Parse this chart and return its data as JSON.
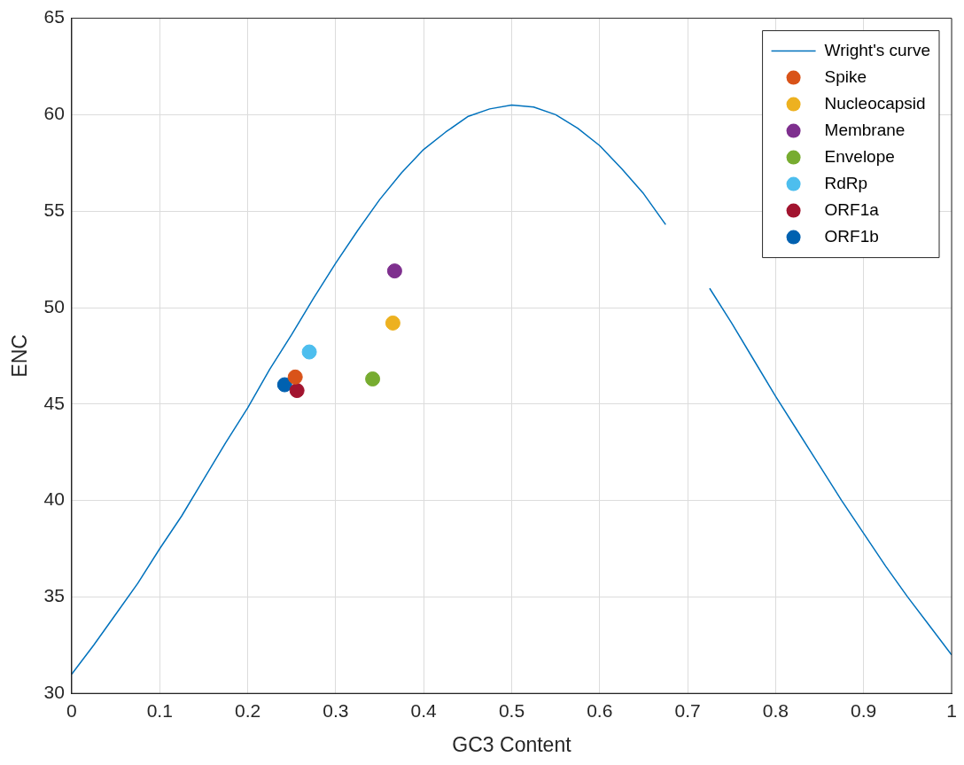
{
  "chart_data": {
    "type": "scatter",
    "xlabel": "GC3 Content",
    "ylabel": "ENC",
    "xlim": [
      0,
      1
    ],
    "ylim": [
      30,
      65
    ],
    "xticks": [
      0,
      0.1,
      0.2,
      0.3,
      0.4,
      0.5,
      0.6,
      0.7,
      0.8,
      0.9,
      1
    ],
    "yticks": [
      30,
      35,
      40,
      45,
      50,
      55,
      60,
      65
    ],
    "grid": true,
    "legend": "top right",
    "marker": "circle",
    "series": [
      {
        "name": "Wright's curve",
        "type": "line",
        "marker": "none",
        "color": "#0072bd",
        "x": [
          0,
          0.025,
          0.05,
          0.075,
          0.1,
          0.125,
          0.15,
          0.175,
          0.2,
          0.225,
          0.25,
          0.275,
          0.3,
          0.325,
          0.35,
          0.375,
          0.4,
          0.425,
          0.45,
          0.475,
          0.5,
          0.525,
          0.55,
          0.575,
          0.6,
          0.625,
          0.65,
          0.675,
          0.7,
          0.725,
          0.75,
          0.775,
          0.8,
          0.825,
          0.85,
          0.875,
          0.9,
          0.925,
          0.95,
          0.975,
          1
        ],
        "values": [
          31.0,
          32.5,
          34.1,
          35.7,
          37.5,
          39.2,
          41.1,
          43.0,
          44.8,
          46.8,
          48.6,
          50.5,
          52.3,
          54.0,
          55.6,
          57.0,
          58.2,
          59.1,
          59.9,
          60.3,
          60.5,
          60.4,
          60.0,
          59.3,
          58.4,
          57.2,
          55.9,
          54.3,
          null,
          51.0,
          49.2,
          47.3,
          45.4,
          43.6,
          41.8,
          40.0,
          38.3,
          36.6,
          35.0,
          33.5,
          32.0
        ]
      },
      {
        "name": "Spike",
        "color": "#d95319",
        "x": [
          0.254
        ],
        "values": [
          46.4
        ]
      },
      {
        "name": "Nucleocapsid",
        "color": "#edb120",
        "x": [
          0.365
        ],
        "values": [
          49.2
        ]
      },
      {
        "name": "Membrane",
        "color": "#7e2f8e",
        "x": [
          0.367
        ],
        "values": [
          51.9
        ]
      },
      {
        "name": "Envelope",
        "color": "#77ac30",
        "x": [
          0.342
        ],
        "values": [
          46.3
        ]
      },
      {
        "name": "RdRp",
        "color": "#4dbeee",
        "x": [
          0.27
        ],
        "values": [
          47.7
        ]
      },
      {
        "name": "ORF1a",
        "color": "#a2142f",
        "x": [
          0.256
        ],
        "values": [
          45.7
        ]
      },
      {
        "name": "ORF1b",
        "color": "#0061b0",
        "x": [
          0.242
        ],
        "values": [
          46.0
        ]
      }
    ]
  }
}
